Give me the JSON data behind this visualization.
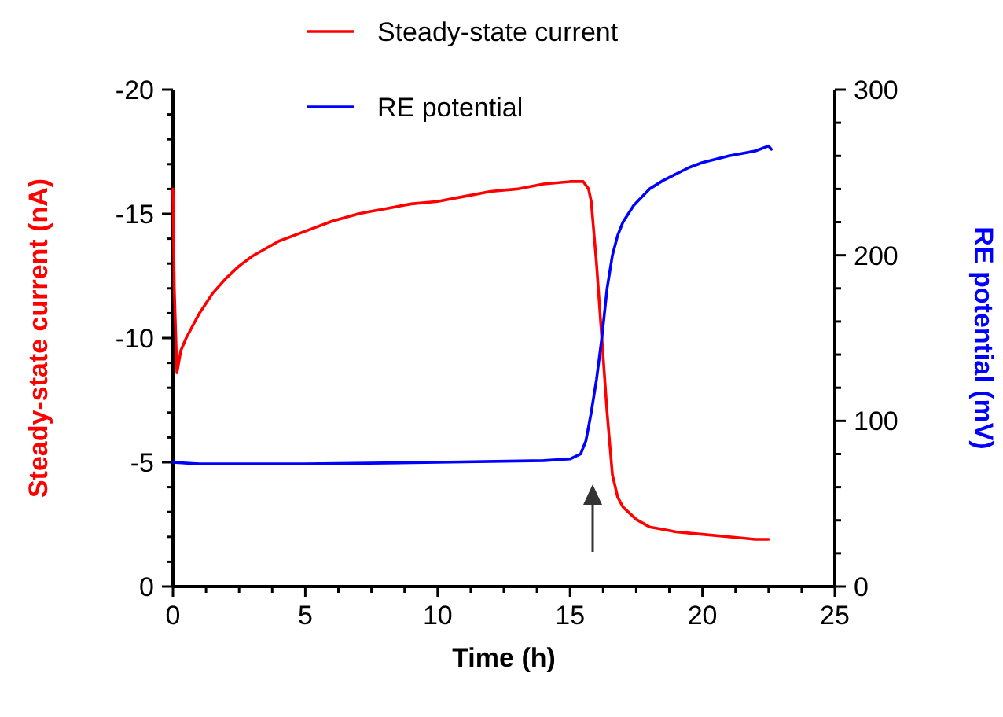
{
  "chart_data": {
    "type": "line",
    "xlabel": "Time (h)",
    "ylabel": "Steady-state current (nA)",
    "y2label": "RE potential (mV)",
    "xlim": [
      0,
      25
    ],
    "xticks": [
      0,
      {
        "value": 1.25,
        "label": null
      },
      {
        "value": 2.5,
        "label": null
      },
      {
        "value": 3.75,
        "label": null
      },
      5,
      {
        "value": 6.25,
        "label": null
      },
      {
        "value": 7.5,
        "label": null
      },
      {
        "value": 8.75,
        "label": null
      },
      10,
      {
        "value": 11.25,
        "label": null
      },
      {
        "value": 12.5,
        "label": null
      },
      {
        "value": 13.75,
        "label": null
      },
      15,
      {
        "value": 16.25,
        "label": null
      },
      {
        "value": 17.5,
        "label": null
      },
      {
        "value": 18.75,
        "label": null
      },
      20,
      {
        "value": 21.25,
        "label": null
      },
      {
        "value": 22.5,
        "label": null
      },
      {
        "value": 23.75,
        "label": null
      },
      25
    ],
    "ylim": [
      0,
      -20
    ],
    "yticks": [
      0,
      {
        "value": -1,
        "label": null
      },
      {
        "value": -2,
        "label": null
      },
      {
        "value": -3,
        "label": null
      },
      {
        "value": -4,
        "label": null
      },
      -5,
      {
        "value": -6,
        "label": null
      },
      {
        "value": -7,
        "label": null
      },
      {
        "value": -8,
        "label": null
      },
      {
        "value": -9,
        "label": null
      },
      -10,
      {
        "value": -11,
        "label": null
      },
      {
        "value": -12,
        "label": null
      },
      {
        "value": -13,
        "label": null
      },
      {
        "value": -14,
        "label": null
      },
      -15,
      {
        "value": -16,
        "label": null
      },
      {
        "value": -17,
        "label": null
      },
      {
        "value": -18,
        "label": null
      },
      {
        "value": -19,
        "label": null
      },
      -20
    ],
    "y2lim": [
      0,
      300
    ],
    "y2ticks": [
      0,
      {
        "value": 20,
        "label": null
      },
      {
        "value": 40,
        "label": null
      },
      {
        "value": 60,
        "label": null
      },
      {
        "value": 80,
        "label": null
      },
      100,
      {
        "value": 120,
        "label": null
      },
      {
        "value": 140,
        "label": null
      },
      {
        "value": 160,
        "label": null
      },
      {
        "value": 180,
        "label": null
      },
      200,
      {
        "value": 220,
        "label": null
      },
      {
        "value": 240,
        "label": null
      },
      {
        "value": 260,
        "label": null
      },
      {
        "value": 280,
        "label": null
      },
      300
    ],
    "legend": "top",
    "marker": "none",
    "line_style": "solid",
    "grid": false,
    "series": [
      {
        "name": "Steady-state current",
        "color": "#ff0000",
        "x": [
          0,
          0.05,
          0.15,
          0.3,
          0.5,
          1,
          1.5,
          2,
          2.5,
          3,
          3.5,
          4,
          5,
          6,
          7,
          7.5,
          8,
          9,
          10,
          11,
          12,
          13,
          14,
          15,
          15.5,
          15.7,
          15.8,
          16,
          16.2,
          16.4,
          16.6,
          16.8,
          17,
          17.5,
          18,
          18.5,
          19,
          20,
          21,
          22,
          22.5
        ],
        "values": [
          -16,
          -12,
          -8.6,
          -9.5,
          -10,
          -11,
          -11.8,
          -12.4,
          -12.9,
          -13.3,
          -13.6,
          -13.9,
          -14.3,
          -14.7,
          -15,
          -15.1,
          -15.2,
          -15.4,
          -15.5,
          -15.7,
          -15.9,
          -16,
          -16.2,
          -16.3,
          -16.3,
          -16,
          -15.5,
          -13,
          -10,
          -7,
          -4.5,
          -3.6,
          -3.2,
          -2.7,
          -2.4,
          -2.3,
          -2.2,
          -2.1,
          -2,
          -1.9,
          -1.9
        ]
      },
      {
        "name": "RE potential",
        "color": "#0000ff",
        "axis": "y2",
        "x": [
          0,
          1,
          5,
          10,
          14,
          15,
          15.4,
          15.6,
          15.8,
          16,
          16.2,
          16.4,
          16.6,
          16.8,
          17,
          17.4,
          18,
          18.5,
          19,
          19.5,
          20,
          21,
          22,
          22.5,
          22.6
        ],
        "values": [
          75,
          74,
          74,
          75,
          76,
          77,
          80,
          88,
          105,
          125,
          150,
          180,
          200,
          212,
          220,
          230,
          240,
          245,
          249,
          253,
          256,
          260,
          263,
          266,
          264
        ]
      }
    ]
  }
}
